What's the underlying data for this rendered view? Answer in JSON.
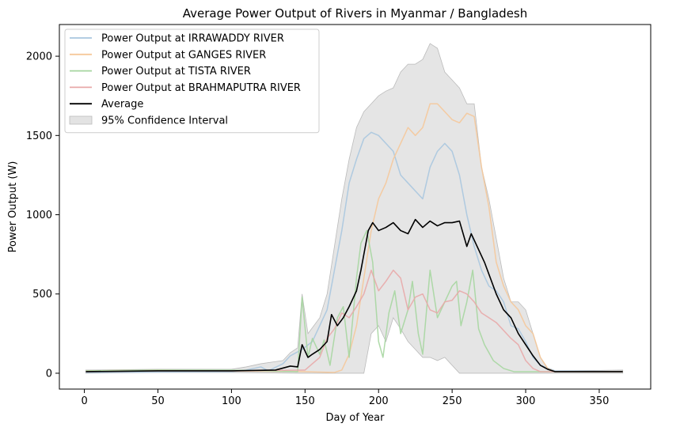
{
  "chart_data": {
    "type": "line",
    "title": "Average Power Output of Rivers in Myanmar / Bangladesh",
    "xlabel": "Day of Year",
    "ylabel": "Power Output (W)",
    "xlim": [
      -17,
      385
    ],
    "ylim": [
      -100,
      2200
    ],
    "xticks": [
      0,
      50,
      100,
      150,
      200,
      250,
      300,
      350
    ],
    "yticks": [
      0,
      500,
      1000,
      1500,
      2000
    ],
    "grid": false,
    "legend_position": "upper-left",
    "series": [
      {
        "name": "Power Output at IRRAWADDY RIVER",
        "color": "#a8c6df",
        "points": [
          [
            1,
            5
          ],
          [
            50,
            8
          ],
          [
            100,
            10
          ],
          [
            110,
            20
          ],
          [
            120,
            40
          ],
          [
            125,
            15
          ],
          [
            135,
            60
          ],
          [
            140,
            110
          ],
          [
            148,
            150
          ],
          [
            155,
            200
          ],
          [
            160,
            300
          ],
          [
            165,
            400
          ],
          [
            170,
            650
          ],
          [
            175,
            900
          ],
          [
            180,
            1200
          ],
          [
            185,
            1350
          ],
          [
            190,
            1480
          ],
          [
            195,
            1520
          ],
          [
            200,
            1500
          ],
          [
            205,
            1450
          ],
          [
            210,
            1400
          ],
          [
            215,
            1250
          ],
          [
            220,
            1200
          ],
          [
            225,
            1150
          ],
          [
            230,
            1100
          ],
          [
            235,
            1300
          ],
          [
            240,
            1400
          ],
          [
            245,
            1450
          ],
          [
            250,
            1400
          ],
          [
            255,
            1250
          ],
          [
            260,
            1000
          ],
          [
            265,
            800
          ],
          [
            270,
            650
          ],
          [
            275,
            550
          ],
          [
            280,
            520
          ],
          [
            285,
            450
          ],
          [
            290,
            300
          ],
          [
            295,
            280
          ],
          [
            300,
            200
          ],
          [
            305,
            100
          ],
          [
            310,
            50
          ],
          [
            320,
            15
          ],
          [
            366,
            10
          ]
        ]
      },
      {
        "name": "Power Output at GANGES RIVER",
        "color": "#f5c89a",
        "points": [
          [
            1,
            15
          ],
          [
            50,
            20
          ],
          [
            100,
            15
          ],
          [
            150,
            10
          ],
          [
            170,
            5
          ],
          [
            175,
            20
          ],
          [
            180,
            120
          ],
          [
            185,
            300
          ],
          [
            190,
            600
          ],
          [
            195,
            900
          ],
          [
            200,
            1100
          ],
          [
            205,
            1200
          ],
          [
            210,
            1350
          ],
          [
            215,
            1450
          ],
          [
            220,
            1550
          ],
          [
            225,
            1500
          ],
          [
            230,
            1550
          ],
          [
            235,
            1700
          ],
          [
            240,
            1700
          ],
          [
            245,
            1650
          ],
          [
            250,
            1600
          ],
          [
            255,
            1580
          ],
          [
            260,
            1640
          ],
          [
            265,
            1620
          ],
          [
            270,
            1300
          ],
          [
            275,
            1050
          ],
          [
            280,
            700
          ],
          [
            285,
            550
          ],
          [
            290,
            450
          ],
          [
            295,
            400
          ],
          [
            300,
            300
          ],
          [
            305,
            250
          ],
          [
            310,
            100
          ],
          [
            315,
            30
          ],
          [
            320,
            10
          ],
          [
            366,
            10
          ]
        ]
      },
      {
        "name": "Power Output at TISTA RIVER",
        "color": "#a6d6a0",
        "points": [
          [
            1,
            15
          ],
          [
            50,
            20
          ],
          [
            100,
            20
          ],
          [
            145,
            10
          ],
          [
            148,
            480
          ],
          [
            152,
            100
          ],
          [
            155,
            220
          ],
          [
            160,
            120
          ],
          [
            163,
            210
          ],
          [
            167,
            50
          ],
          [
            172,
            350
          ],
          [
            176,
            420
          ],
          [
            180,
            100
          ],
          [
            185,
            600
          ],
          [
            188,
            820
          ],
          [
            192,
            900
          ],
          [
            196,
            700
          ],
          [
            200,
            200
          ],
          [
            203,
            100
          ],
          [
            207,
            380
          ],
          [
            211,
            520
          ],
          [
            215,
            250
          ],
          [
            220,
            400
          ],
          [
            223,
            580
          ],
          [
            227,
            250
          ],
          [
            230,
            120
          ],
          [
            235,
            650
          ],
          [
            240,
            350
          ],
          [
            245,
            450
          ],
          [
            250,
            550
          ],
          [
            253,
            580
          ],
          [
            256,
            300
          ],
          [
            260,
            450
          ],
          [
            264,
            650
          ],
          [
            268,
            280
          ],
          [
            272,
            180
          ],
          [
            278,
            80
          ],
          [
            285,
            30
          ],
          [
            292,
            10
          ],
          [
            366,
            10
          ]
        ]
      },
      {
        "name": "Power Output at BRAHMAPUTRA RIVER",
        "color": "#e8a8a8",
        "points": [
          [
            1,
            10
          ],
          [
            50,
            15
          ],
          [
            100,
            15
          ],
          [
            150,
            20
          ],
          [
            160,
            100
          ],
          [
            165,
            220
          ],
          [
            170,
            280
          ],
          [
            175,
            380
          ],
          [
            180,
            350
          ],
          [
            185,
            420
          ],
          [
            190,
            500
          ],
          [
            195,
            650
          ],
          [
            200,
            520
          ],
          [
            205,
            580
          ],
          [
            210,
            650
          ],
          [
            215,
            600
          ],
          [
            220,
            400
          ],
          [
            225,
            480
          ],
          [
            230,
            500
          ],
          [
            235,
            400
          ],
          [
            240,
            380
          ],
          [
            245,
            450
          ],
          [
            250,
            460
          ],
          [
            255,
            520
          ],
          [
            260,
            500
          ],
          [
            265,
            450
          ],
          [
            270,
            380
          ],
          [
            275,
            350
          ],
          [
            280,
            320
          ],
          [
            285,
            270
          ],
          [
            290,
            220
          ],
          [
            295,
            180
          ],
          [
            300,
            80
          ],
          [
            305,
            30
          ],
          [
            310,
            10
          ],
          [
            366,
            10
          ]
        ]
      },
      {
        "name": "Average",
        "color": "#000000",
        "points": [
          [
            1,
            10
          ],
          [
            50,
            15
          ],
          [
            100,
            15
          ],
          [
            130,
            20
          ],
          [
            140,
            45
          ],
          [
            145,
            40
          ],
          [
            148,
            180
          ],
          [
            152,
            100
          ],
          [
            155,
            120
          ],
          [
            160,
            150
          ],
          [
            165,
            200
          ],
          [
            168,
            370
          ],
          [
            172,
            300
          ],
          [
            176,
            350
          ],
          [
            180,
            420
          ],
          [
            185,
            520
          ],
          [
            188,
            650
          ],
          [
            190,
            750
          ],
          [
            193,
            900
          ],
          [
            196,
            950
          ],
          [
            200,
            900
          ],
          [
            205,
            920
          ],
          [
            210,
            950
          ],
          [
            215,
            900
          ],
          [
            220,
            880
          ],
          [
            225,
            970
          ],
          [
            230,
            920
          ],
          [
            235,
            960
          ],
          [
            240,
            930
          ],
          [
            245,
            950
          ],
          [
            250,
            950
          ],
          [
            255,
            960
          ],
          [
            260,
            800
          ],
          [
            263,
            880
          ],
          [
            267,
            800
          ],
          [
            272,
            700
          ],
          [
            276,
            600
          ],
          [
            280,
            500
          ],
          [
            285,
            400
          ],
          [
            290,
            350
          ],
          [
            295,
            250
          ],
          [
            300,
            180
          ],
          [
            305,
            110
          ],
          [
            310,
            50
          ],
          [
            315,
            25
          ],
          [
            320,
            10
          ],
          [
            366,
            10
          ]
        ]
      }
    ],
    "confidence_band": {
      "name": "95% Confidence Interval",
      "color": "#cccccc",
      "upper": [
        [
          1,
          20
        ],
        [
          50,
          25
        ],
        [
          100,
          25
        ],
        [
          110,
          40
        ],
        [
          120,
          60
        ],
        [
          135,
          80
        ],
        [
          140,
          130
        ],
        [
          145,
          160
        ],
        [
          148,
          500
        ],
        [
          152,
          250
        ],
        [
          160,
          350
        ],
        [
          165,
          500
        ],
        [
          170,
          800
        ],
        [
          175,
          1100
        ],
        [
          180,
          1350
        ],
        [
          185,
          1550
        ],
        [
          190,
          1650
        ],
        [
          195,
          1700
        ],
        [
          200,
          1750
        ],
        [
          205,
          1780
        ],
        [
          210,
          1800
        ],
        [
          215,
          1900
        ],
        [
          220,
          1950
        ],
        [
          225,
          1950
        ],
        [
          230,
          1980
        ],
        [
          235,
          2080
        ],
        [
          240,
          2050
        ],
        [
          245,
          1900
        ],
        [
          250,
          1850
        ],
        [
          255,
          1800
        ],
        [
          260,
          1700
        ],
        [
          265,
          1700
        ],
        [
          270,
          1300
        ],
        [
          275,
          1100
        ],
        [
          280,
          850
        ],
        [
          285,
          600
        ],
        [
          290,
          450
        ],
        [
          295,
          450
        ],
        [
          300,
          400
        ],
        [
          305,
          250
        ],
        [
          310,
          100
        ],
        [
          315,
          30
        ],
        [
          320,
          15
        ],
        [
          366,
          20
        ]
      ],
      "lower": [
        [
          1,
          0
        ],
        [
          50,
          5
        ],
        [
          100,
          5
        ],
        [
          145,
          0
        ],
        [
          160,
          0
        ],
        [
          175,
          0
        ],
        [
          190,
          0
        ],
        [
          195,
          250
        ],
        [
          200,
          300
        ],
        [
          205,
          200
        ],
        [
          210,
          350
        ],
        [
          215,
          280
        ],
        [
          220,
          200
        ],
        [
          225,
          150
        ],
        [
          230,
          100
        ],
        [
          235,
          100
        ],
        [
          240,
          80
        ],
        [
          245,
          100
        ],
        [
          250,
          50
        ],
        [
          255,
          0
        ],
        [
          260,
          0
        ],
        [
          300,
          0
        ],
        [
          366,
          0
        ]
      ]
    }
  }
}
